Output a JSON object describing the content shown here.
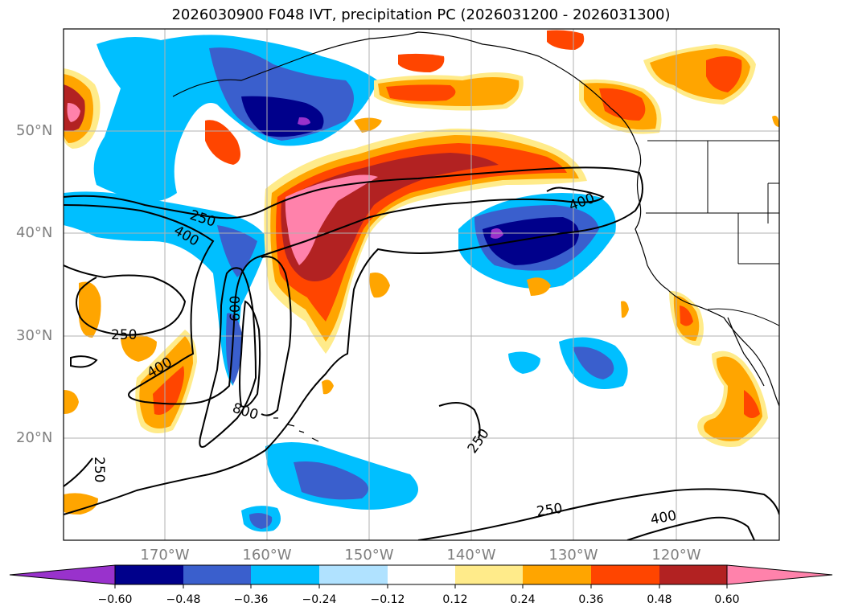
{
  "title": "2026030900 F048 IVT, precipitation PC (2026031200 - 2026031300)",
  "map": {
    "lat_labels": [
      "50°N",
      "40°N",
      "30°N",
      "20°N"
    ],
    "lon_labels": [
      "170°W",
      "160°W",
      "150°W",
      "140°W",
      "130°W",
      "120°W"
    ],
    "contour_labels": [
      "250",
      "400",
      "250",
      "400",
      "600",
      "800",
      "250",
      "400",
      "250",
      "250",
      "400"
    ],
    "line_color": "#000000",
    "grid_color": "#b0b0b0"
  },
  "colorbar": {
    "ticks": [
      "−0.60",
      "−0.48",
      "−0.36",
      "−0.24",
      "−0.12",
      "0.12",
      "0.24",
      "0.36",
      "0.48",
      "0.60"
    ],
    "colors": [
      "#9932cc",
      "#00008b",
      "#3a5fcd",
      "#00bfff",
      "#b0e2ff",
      "#ffffff",
      "#ffeb8a",
      "#ffa500",
      "#ff4500",
      "#b22222",
      "#ff82ab"
    ]
  }
}
